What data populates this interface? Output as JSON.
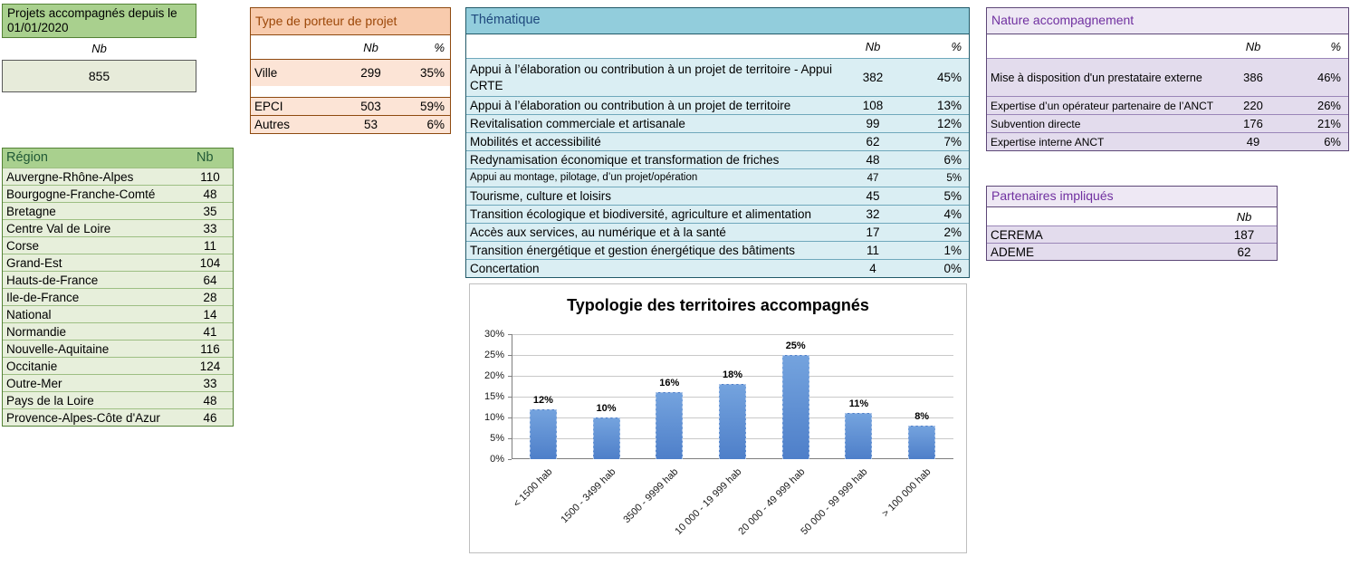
{
  "summary": {
    "title": "Projets accompagnés depuis le 01/01/2020",
    "nb_label": "Nb",
    "value": "855"
  },
  "region": {
    "header_label": "Région",
    "nb_label": "Nb",
    "rows": [
      {
        "label": "Auvergne-Rhône-Alpes",
        "nb": "110"
      },
      {
        "label": "Bourgogne-Franche-Comté",
        "nb": "48"
      },
      {
        "label": "Bretagne",
        "nb": "35"
      },
      {
        "label": "Centre Val de Loire",
        "nb": "33"
      },
      {
        "label": "Corse",
        "nb": "11"
      },
      {
        "label": "Grand-Est",
        "nb": "104"
      },
      {
        "label": "Hauts-de-France",
        "nb": "64"
      },
      {
        "label": "Ile-de-France",
        "nb": "28"
      },
      {
        "label": "National",
        "nb": "14"
      },
      {
        "label": "Normandie",
        "nb": "41"
      },
      {
        "label": "Nouvelle-Aquitaine",
        "nb": "116"
      },
      {
        "label": "Occitanie",
        "nb": "124"
      },
      {
        "label": "Outre-Mer",
        "nb": "33"
      },
      {
        "label": "Pays de la Loire",
        "nb": "48"
      },
      {
        "label": "Provence-Alpes-Côte d'Azur",
        "nb": "46"
      }
    ]
  },
  "porteur": {
    "title": "Type de porteur de projet",
    "nb_label": "Nb",
    "pct_label": "%",
    "rows": [
      {
        "label": "Ville",
        "nb": "299",
        "pct": "35%"
      },
      {
        "label": "EPCI",
        "nb": "503",
        "pct": "59%"
      },
      {
        "label": "Autres",
        "nb": "53",
        "pct": "6%"
      }
    ]
  },
  "thematique": {
    "title": "Thématique",
    "nb_label": "Nb",
    "pct_label": "%",
    "rows": [
      {
        "label": "Appui à l’élaboration ou contribution à un projet de territoire  - Appui CRTE",
        "nb": "382",
        "pct": "45%"
      },
      {
        "label": "Appui à l’élaboration ou contribution à un projet de territoire",
        "nb": "108",
        "pct": "13%"
      },
      {
        "label": "Revitalisation commerciale et artisanale",
        "nb": "99",
        "pct": "12%"
      },
      {
        "label": "Mobilités et accessibilité",
        "nb": "62",
        "pct": "7%"
      },
      {
        "label": "Redynamisation économique et transformation de friches",
        "nb": "48",
        "pct": "6%"
      },
      {
        "label": "Appui au montage, pilotage, d’un projet/opération",
        "nb": "47",
        "pct": "5%"
      },
      {
        "label": "Tourisme, culture et loisirs",
        "nb": "45",
        "pct": "5%"
      },
      {
        "label": "Transition écologique et biodiversité, agriculture et alimentation",
        "nb": "32",
        "pct": "4%"
      },
      {
        "label": "Accès aux services, au numérique et à la santé",
        "nb": "17",
        "pct": "2%"
      },
      {
        "label": "Transition énergétique et gestion énergétique des bâtiments",
        "nb": "11",
        "pct": "1%"
      },
      {
        "label": "Concertation",
        "nb": "4",
        "pct": "0%"
      }
    ]
  },
  "nature": {
    "title": "Nature accompagnement",
    "nb_label": "Nb",
    "pct_label": "%",
    "rows": [
      {
        "label": "Mise à disposition d'un prestataire externe",
        "nb": "386",
        "pct": "46%"
      },
      {
        "label": "Expertise d’un opérateur partenaire de l’ANCT",
        "nb": "220",
        "pct": "26%"
      },
      {
        "label": "Subvention directe",
        "nb": "176",
        "pct": "21%"
      },
      {
        "label": "Expertise interne ANCT",
        "nb": "49",
        "pct": "6%"
      }
    ]
  },
  "partenaires": {
    "title": "Partenaires impliqués",
    "nb_label": "Nb",
    "rows": [
      {
        "label": "CEREMA",
        "nb": "187"
      },
      {
        "label": "ADEME",
        "nb": "62"
      }
    ]
  },
  "chart_data": {
    "type": "bar",
    "title": "Typologie des territoires accompagnés",
    "categories": [
      "< 1500 hab",
      "1500 - 3499 hab",
      "3500 - 9999 hab",
      "10 000 - 19 999 hab",
      "20 000 - 49 999 hab",
      "50 000 - 99 999 hab",
      "> 100 000 hab"
    ],
    "values": [
      12,
      10,
      16,
      18,
      25,
      11,
      8
    ],
    "unit": "%",
    "xlabel": "",
    "ylabel": "",
    "ylim": [
      0,
      30
    ],
    "ytick_step": 5,
    "grid": true,
    "legend": false,
    "bar_color": "#4E7FC9"
  }
}
